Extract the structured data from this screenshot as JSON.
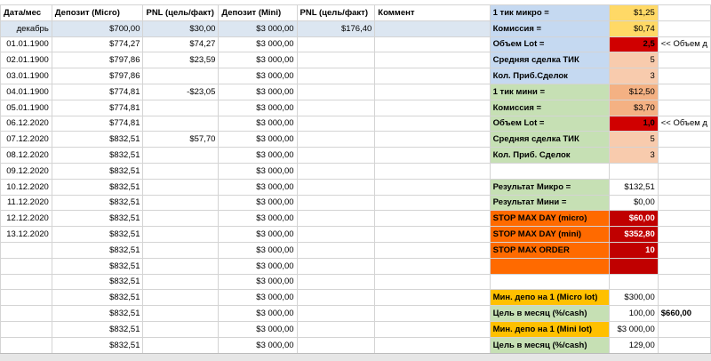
{
  "header": [
    "Дата/мес",
    "Депозит (Micro)",
    "PNL (цель/факт)",
    "Депозит (Mini)",
    "PNL (цель/факт)",
    "Коммент"
  ],
  "rows": [
    [
      "декабрь",
      "$700,00",
      "$30,00",
      "$3 000,00",
      "$176,40"
    ],
    [
      "01.01.1900",
      "$774,27",
      "$74,27",
      "$3 000,00",
      null
    ],
    [
      "02.01.1900",
      "$797,86",
      "$23,59",
      "$3 000,00",
      null
    ],
    [
      "03.01.1900",
      "$797,86",
      null,
      "$3 000,00",
      null
    ],
    [
      "04.01.1900",
      "$774,81",
      "-$23,05",
      "$3 000,00",
      null
    ],
    [
      "05.01.1900",
      "$774,81",
      null,
      "$3 000,00",
      null
    ],
    [
      "06.12.2020",
      "$774,81",
      null,
      "$3 000,00",
      null
    ],
    [
      "07.12.2020",
      "$832,51",
      "$57,70",
      "$3 000,00",
      null
    ],
    [
      "08.12.2020",
      "$832,51",
      null,
      "$3 000,00",
      null
    ],
    [
      "09.12.2020",
      "$832,51",
      null,
      "$3 000,00",
      null
    ],
    [
      "10.12.2020",
      "$832,51",
      null,
      "$3 000,00",
      null
    ],
    [
      "11.12.2020",
      "$832,51",
      null,
      "$3 000,00",
      null
    ],
    [
      "12.12.2020",
      "$832,51",
      null,
      "$3 000,00",
      null
    ],
    [
      "13.12.2020",
      "$832,51",
      null,
      "$3 000,00",
      null
    ],
    [
      null,
      "$832,51",
      null,
      "$3 000,00",
      null
    ],
    [
      null,
      "$832,51",
      null,
      "$3 000,00",
      null
    ],
    [
      null,
      "$832,51",
      null,
      "$3 000,00",
      null
    ],
    [
      null,
      "$832,51",
      null,
      "$3 000,00",
      null
    ],
    [
      null,
      "$832,51",
      null,
      "$3 000,00",
      null
    ],
    [
      null,
      "$832,51",
      null,
      "$3 000,00",
      null
    ],
    [
      null,
      "$832,51",
      null,
      "$3 000,00",
      null
    ]
  ],
  "panel": [
    [
      "1 тик микро =",
      "$1,25",
      null
    ],
    [
      "Комиссия =",
      "$0,74",
      null
    ],
    [
      "Объем  Lot =",
      "2,5",
      "<< Объем д"
    ],
    [
      "Средняя сделка ТИК",
      "5",
      null
    ],
    [
      "Кол. Приб.Сделок",
      "3",
      null
    ],
    [
      "1 тик мини =",
      "$12,50",
      null
    ],
    [
      "Комиссия =",
      "$3,70",
      null
    ],
    [
      "Объем  Lot =",
      "1,0",
      "<< Объем д"
    ],
    [
      "Средняя сделка ТИК",
      "5",
      null
    ],
    [
      "Кол. Приб. Сделок",
      "3",
      null
    ],
    [
      null,
      null,
      null
    ],
    [
      "Результат Микро =",
      "$132,51",
      null
    ],
    [
      "Результат Мини =",
      "$0,00",
      null
    ],
    [
      "STOP MAX DAY (micro)",
      "$60,00",
      null
    ],
    [
      "STOP MAX DAY (mini)",
      "$352,80",
      null
    ],
    [
      "STOP MAX ORDER",
      "10",
      null
    ],
    [
      null,
      null,
      null
    ],
    [
      null,
      null,
      null
    ],
    [
      "Мин. депо на 1 (Micro lot)",
      "$300,00",
      null
    ],
    [
      "Цель в месяц (%/cash)",
      "100,00",
      "$660,00"
    ],
    [
      "Мин. депо на 1 (Mini lot)",
      "$3 000,00",
      null
    ],
    [
      "Цель в месяц (%/cash)",
      "129,00",
      null
    ]
  ]
}
